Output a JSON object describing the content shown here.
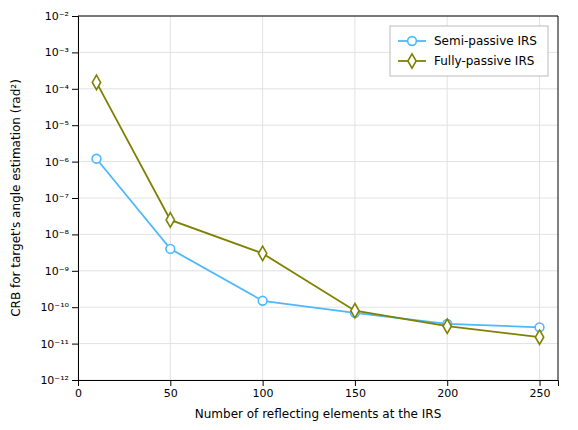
{
  "chart_data": {
    "type": "line",
    "log": "y",
    "x": [
      10,
      50,
      100,
      150,
      200,
      250
    ],
    "series": [
      {
        "name": "Semi-passive IRS",
        "color": "#4DB8FF",
        "marker": "circle",
        "line_style": "solid",
        "values": [
          1.2e-06,
          4e-09,
          1.5e-10,
          7e-11,
          3.5e-11,
          2.8e-11
        ]
      },
      {
        "name": "Fully-passive IRS",
        "color": "#808000",
        "marker": "diamond",
        "line_style": "solid",
        "values": [
          0.00015,
          2.5e-08,
          3e-09,
          8e-11,
          3e-11,
          1.5e-11
        ]
      }
    ],
    "xlabel": "Number of reflecting elements at the IRS",
    "ylabel": "CRB for target's angle estimation (rad²)",
    "xlim": [
      0,
      260
    ],
    "ylim": [
      1e-12,
      0.01
    ],
    "xticks": [
      0,
      50,
      100,
      150,
      200,
      250
    ],
    "yticks": [
      {
        "value": 1e-12,
        "label": "10⁻¹²"
      },
      {
        "value": 1e-11,
        "label": "10⁻¹¹"
      },
      {
        "value": 1e-10,
        "label": "10⁻¹⁰"
      },
      {
        "value": 1e-09,
        "label": "10⁻⁹"
      },
      {
        "value": 1e-08,
        "label": "10⁻⁸"
      },
      {
        "value": 1e-07,
        "label": "10⁻⁷"
      },
      {
        "value": 1e-06,
        "label": "10⁻⁶"
      },
      {
        "value": 1e-05,
        "label": "10⁻⁵"
      },
      {
        "value": 0.0001,
        "label": "10⁻⁴"
      },
      {
        "value": 0.001,
        "label": "10⁻³"
      },
      {
        "value": 0.01,
        "label": "10⁻²"
      }
    ],
    "grid": true,
    "legend": "upper right"
  }
}
